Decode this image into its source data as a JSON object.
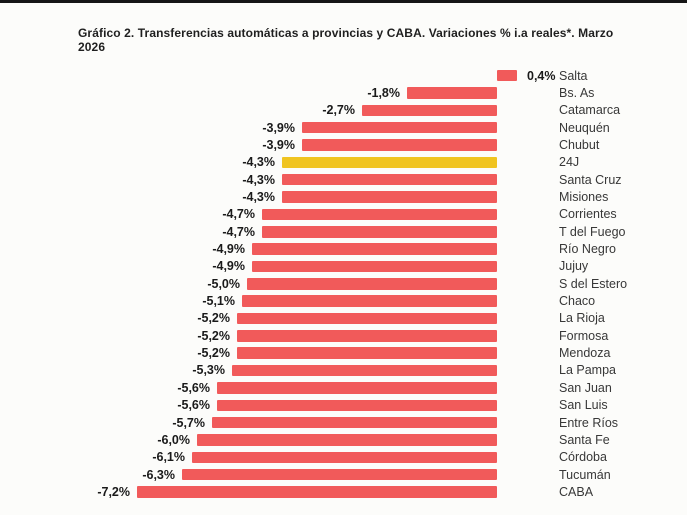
{
  "title": "Gráfico 2. Transferencias automáticas a provincias y CABA. Variaciones % i.a reales*. Marzo 2026",
  "colors": {
    "bar": "#F15A5A",
    "highlight": "#F0C420",
    "background": "#FCFCFA",
    "top_strip": "#161616",
    "title_text": "#1F1F1F",
    "value_text": "#1A1A1A",
    "name_text": "#383838"
  },
  "chart_data": {
    "type": "bar",
    "orientation": "horizontal",
    "title": "Gráfico 2. Transferencias automáticas a provincias y CABA. Variaciones % i.a reales*. Marzo 2026",
    "xlabel": "",
    "ylabel": "",
    "xlim": [
      -7.5,
      0.6
    ],
    "baseline": 0,
    "grid": false,
    "legend": "none",
    "value_format": "comma-decimal-percent",
    "highlight_category": "24J",
    "categories": [
      "Salta",
      "Bs. As",
      "Catamarca",
      "Neuquén",
      "Chubut",
      "24J",
      "Santa Cruz",
      "Misiones",
      "Corrientes",
      "T del Fuego",
      "Río Negro",
      "Jujuy",
      "S del Estero",
      "Chaco",
      "La Rioja",
      "Formosa",
      "Mendoza",
      "La Pampa",
      "San Juan",
      "San Luis",
      "Entre Ríos",
      "Santa Fe",
      "Córdoba",
      "Tucumán",
      "CABA"
    ],
    "values": [
      0.4,
      -1.8,
      -2.7,
      -3.9,
      -3.9,
      -4.3,
      -4.3,
      -4.3,
      -4.7,
      -4.7,
      -4.9,
      -4.9,
      -5.0,
      -5.1,
      -5.2,
      -5.2,
      -5.2,
      -5.3,
      -5.6,
      -5.6,
      -5.7,
      -6.0,
      -6.1,
      -6.3,
      -7.2
    ],
    "labels": [
      "0,4%",
      "-1,8%",
      "-2,7%",
      "-3,9%",
      "-3,9%",
      "-4,3%",
      "-4,3%",
      "-4,3%",
      "-4,7%",
      "-4,7%",
      "-4,9%",
      "-4,9%",
      "-5,0%",
      "-5,1%",
      "-5,2%",
      "-5,2%",
      "-5,2%",
      "-5,3%",
      "-5,6%",
      "-5,6%",
      "-5,7%",
      "-6,0%",
      "-6,1%",
      "-6,3%",
      "-7,2%"
    ]
  }
}
